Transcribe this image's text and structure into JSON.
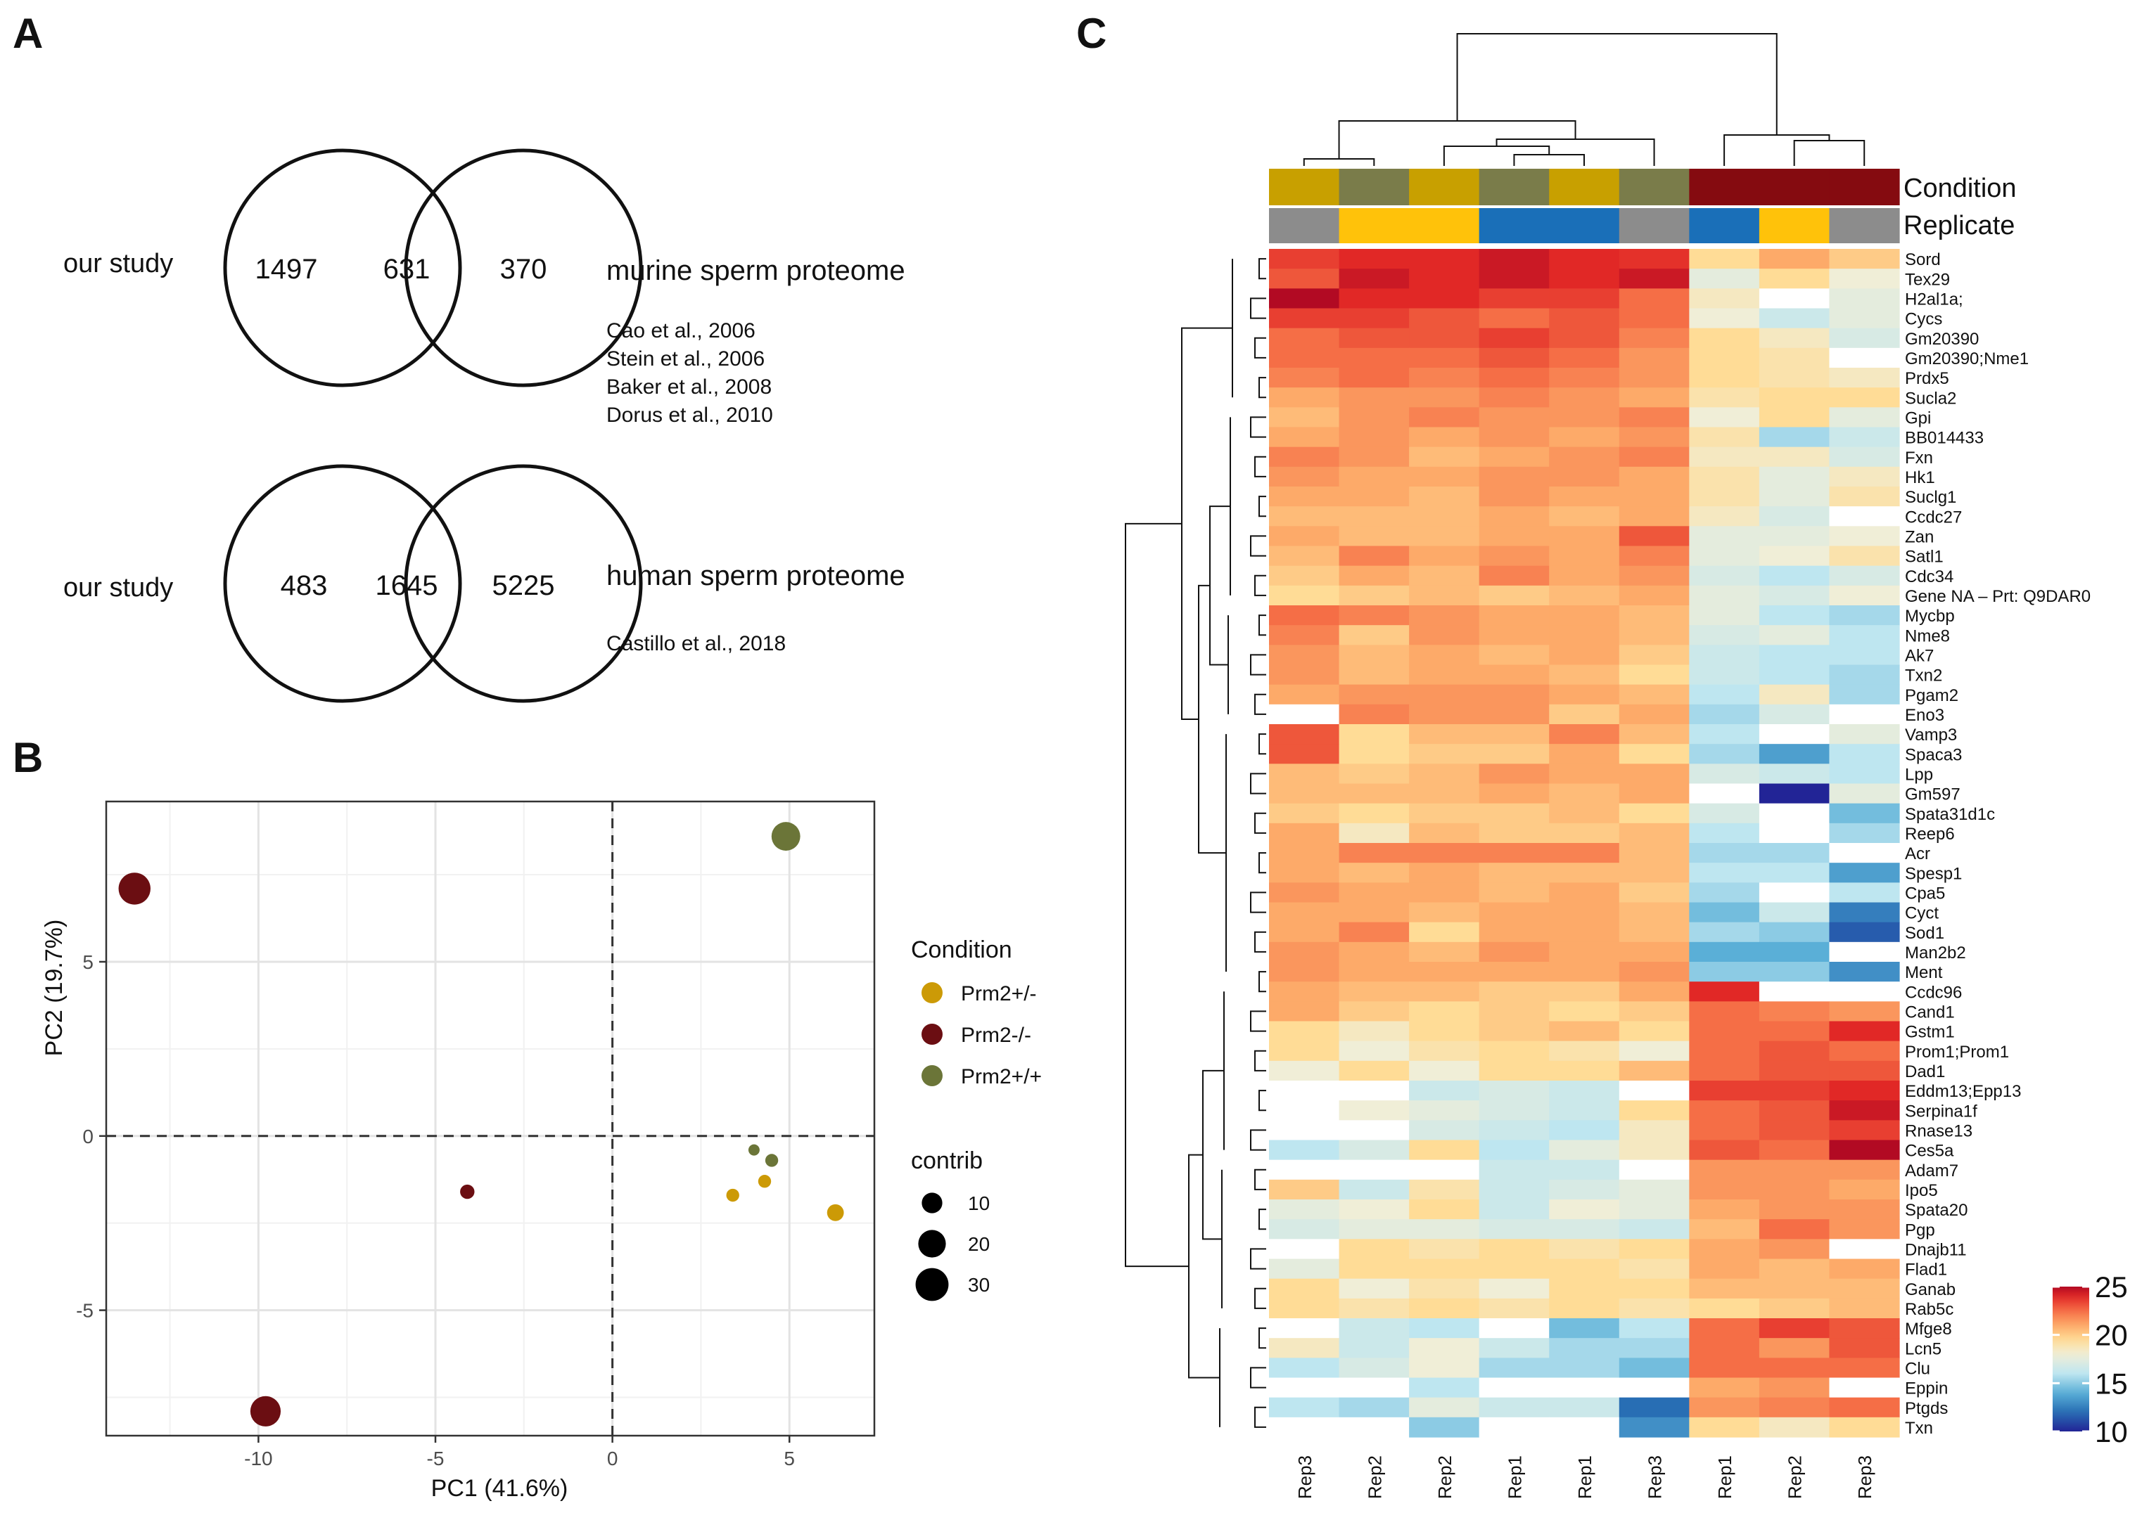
{
  "panel_labels": {
    "a": "A",
    "b": "B",
    "c": "C"
  },
  "panel_a": {
    "venn1": {
      "left_label": "our study",
      "left_only": "1497",
      "overlap": "631",
      "right_only": "370",
      "right_label": "murine sperm proteome",
      "refs": [
        "Cao et al., 2006",
        "Stein et al., 2006",
        "Baker et al., 2008",
        "Dorus et al., 2010"
      ]
    },
    "venn2": {
      "left_label": "our study",
      "left_only": "483",
      "overlap": "1645",
      "right_only": "5225",
      "right_label": "human sperm proteome",
      "refs": [
        "Castillo et al., 2018"
      ]
    }
  },
  "chart_data": [
    {
      "type": "scatter",
      "panel": "B",
      "xlabel": "PC1 (41.6%)",
      "ylabel": "PC2 (19.7%)",
      "xlim": [
        -14.3,
        7.4
      ],
      "ylim": [
        -8.6,
        9.6
      ],
      "xticks": [
        -10,
        -5,
        0,
        5
      ],
      "yticks": [
        -5,
        0,
        5
      ],
      "xtick_labels": [
        "-10",
        "-5",
        "0",
        "5"
      ],
      "ytick_labels": [
        "-5",
        "0",
        "5"
      ],
      "reference_lines": {
        "x": 0,
        "y": 0
      },
      "legend": {
        "condition_title": "Condition",
        "conditions": [
          {
            "name": "Prm2+/-",
            "color": "#cc9a06"
          },
          {
            "name": "Prm2-/-",
            "color": "#6b0e12"
          },
          {
            "name": "Prm2+/+",
            "color": "#6b7538"
          }
        ],
        "size_title": "contrib",
        "sizes": [
          {
            "label": "10",
            "value": 10
          },
          {
            "label": "20",
            "value": 20
          },
          {
            "label": "30",
            "value": 30
          }
        ]
      },
      "points": [
        {
          "x": -13.5,
          "y": 7.1,
          "condition": "Prm2-/-",
          "contrib": 28
        },
        {
          "x": -9.8,
          "y": -7.9,
          "condition": "Prm2-/-",
          "contrib": 25
        },
        {
          "x": -4.1,
          "y": -1.6,
          "condition": "Prm2-/-",
          "contrib": 4
        },
        {
          "x": 4.9,
          "y": 8.6,
          "condition": "Prm2+/+",
          "contrib": 22
        },
        {
          "x": 4.0,
          "y": -0.4,
          "condition": "Prm2+/+",
          "contrib": 2
        },
        {
          "x": 4.5,
          "y": -0.7,
          "condition": "Prm2+/+",
          "contrib": 3
        },
        {
          "x": 4.3,
          "y": -1.3,
          "condition": "Prm2+/-",
          "contrib": 3
        },
        {
          "x": 3.4,
          "y": -1.7,
          "condition": "Prm2+/-",
          "contrib": 3
        },
        {
          "x": 6.3,
          "y": -2.2,
          "condition": "Prm2+/-",
          "contrib": 6
        }
      ]
    },
    {
      "type": "heatmap",
      "panel": "C",
      "annotation_titles": {
        "condition": "Condition",
        "replicate": "Replicate"
      },
      "columns": [
        "Rep3",
        "Rep2",
        "Rep2",
        "Rep1",
        "Rep1",
        "Rep3",
        "Rep1",
        "Rep2",
        "Rep3"
      ],
      "column_condition": [
        "Prm2+/-",
        "Prm2+/+",
        "Prm2+/-",
        "Prm2+/+",
        "Prm2+/-",
        "Prm2+/+",
        "Prm2-/-",
        "Prm2-/-",
        "Prm2-/-"
      ],
      "condition_colors": {
        "Prm2+/-": "#c8a000",
        "Prm2+/+": "#7a7c4a",
        "Prm2-/-": "#850b10"
      },
      "replicate_colors": {
        "Rep1": "#1a6fb8",
        "Rep2": "#ffc20a",
        "Rep3": "#8c8c8c"
      },
      "scale": {
        "min": 10,
        "max": 25,
        "ticks": [
          25,
          20,
          15,
          10
        ],
        "tick_labels": [
          "25",
          "20",
          "15",
          "10"
        ]
      },
      "rows": [
        "Sord",
        "Tex29",
        "H2al1a;",
        "Cycs",
        "Gm20390",
        "Gm20390;Nme1",
        "Prdx5",
        "Sucla2",
        "Gpi",
        "BB014433",
        "Fxn",
        "Hk1",
        "Suclg1",
        "Ccdc27",
        "Zan",
        "Satl1",
        "Cdc34",
        "Gene NA – Prt: Q9DAR0",
        "Mycbp",
        "Nme8",
        "Ak7",
        "Txn2",
        "Pgam2",
        "Eno3",
        "Vamp3",
        "Spaca3",
        "Lpp",
        "Gm597",
        "Spata31d1c",
        "Reep6",
        "Acr",
        "Spesp1",
        "Cpa5",
        "Cyct",
        "Sod1",
        "Man2b2",
        "Ment",
        "Ccdc96",
        "Cand1",
        "Gstm1",
        "Prom1;Prom1",
        "Dad1",
        "Eddm13;Epp13",
        "Serpina1f",
        "Rnase13",
        "Ces5a",
        "Adam7",
        "Ipo5",
        "Spata20",
        "Pgp",
        "Dnajb11",
        "Flad1",
        "Ganab",
        "Rab5c",
        "Mfge8",
        "Lcn5",
        "Clu",
        "Eppin",
        "Ptgds",
        "Txn"
      ],
      "values": [
        [
          23.5,
          24.0,
          24.0,
          24.5,
          24.0,
          23.8,
          19.5,
          21.0,
          20.0
        ],
        [
          23.0,
          24.5,
          24.0,
          24.5,
          24.0,
          24.5,
          17.5,
          19.5,
          18.0
        ],
        [
          25.0,
          24.0,
          24.0,
          23.5,
          23.5,
          22.5,
          18.5,
          null,
          17.5
        ],
        [
          23.5,
          23.5,
          23.0,
          22.5,
          23.0,
          22.5,
          18.0,
          16.5,
          17.5
        ],
        [
          22.5,
          23.0,
          23.0,
          23.5,
          23.0,
          22.0,
          19.5,
          18.5,
          17.0
        ],
        [
          22.5,
          22.5,
          22.5,
          23.0,
          22.5,
          21.5,
          19.5,
          19.0,
          null
        ],
        [
          22.0,
          22.5,
          22.0,
          22.5,
          22.0,
          21.5,
          19.5,
          19.0,
          18.5
        ],
        [
          21.0,
          21.5,
          21.5,
          22.0,
          21.5,
          21.0,
          19.0,
          19.5,
          19.5
        ],
        [
          20.5,
          21.5,
          22.0,
          21.5,
          21.5,
          22.0,
          18.0,
          19.5,
          17.5
        ],
        [
          21.0,
          21.5,
          21.0,
          21.5,
          21.0,
          21.5,
          19.0,
          15.5,
          16.5
        ],
        [
          22.0,
          21.5,
          20.5,
          21.0,
          21.5,
          22.0,
          18.5,
          18.5,
          17.0
        ],
        [
          21.5,
          21.0,
          21.0,
          21.5,
          21.5,
          21.0,
          19.0,
          17.5,
          18.5
        ],
        [
          21.0,
          21.0,
          20.5,
          21.5,
          21.0,
          21.0,
          19.0,
          17.5,
          19.0
        ],
        [
          20.5,
          20.5,
          20.5,
          21.0,
          20.5,
          21.0,
          18.5,
          17.0,
          null
        ],
        [
          21.0,
          20.5,
          20.5,
          21.0,
          21.0,
          23.0,
          17.5,
          17.5,
          18.0
        ],
        [
          20.5,
          22.0,
          21.0,
          21.5,
          21.0,
          22.0,
          17.5,
          18.0,
          19.0
        ],
        [
          20.0,
          21.0,
          20.5,
          22.0,
          21.0,
          21.5,
          17.0,
          16.0,
          17.0
        ],
        [
          19.5,
          20.0,
          20.5,
          20.0,
          20.5,
          21.0,
          17.5,
          17.0,
          18.0
        ],
        [
          22.5,
          22.0,
          21.5,
          21.0,
          21.0,
          20.5,
          17.5,
          16.0,
          15.5
        ],
        [
          22.0,
          20.0,
          21.5,
          21.0,
          21.0,
          20.5,
          17.0,
          17.5,
          16.0
        ],
        [
          21.5,
          20.5,
          21.0,
          20.5,
          21.0,
          20.0,
          16.5,
          16.0,
          16.0
        ],
        [
          21.5,
          20.5,
          21.0,
          21.0,
          20.5,
          19.5,
          16.5,
          16.0,
          15.5
        ],
        [
          21.0,
          21.5,
          21.5,
          21.5,
          21.0,
          20.5,
          16.0,
          18.5,
          15.5
        ],
        [
          null,
          22.0,
          21.5,
          21.5,
          20.0,
          21.0,
          15.5,
          17.0,
          null
        ],
        [
          23.0,
          19.5,
          20.5,
          20.5,
          22.0,
          20.5,
          16.0,
          null,
          17.5
        ],
        [
          23.0,
          19.5,
          20.0,
          20.0,
          21.0,
          19.5,
          15.5,
          13.5,
          16.0
        ],
        [
          20.5,
          20.0,
          20.5,
          21.5,
          21.0,
          21.0,
          17.0,
          16.5,
          16.0
        ],
        [
          20.5,
          20.5,
          20.5,
          21.0,
          20.5,
          21.0,
          null,
          10.0,
          17.5
        ],
        [
          20.0,
          19.5,
          20.0,
          20.0,
          20.5,
          19.5,
          17.0,
          null,
          14.5
        ],
        [
          21.0,
          18.5,
          20.5,
          20.0,
          20.0,
          20.5,
          16.0,
          null,
          15.5
        ],
        [
          21.0,
          22.0,
          22.0,
          22.0,
          22.0,
          20.5,
          15.5,
          15.5,
          null
        ],
        [
          21.0,
          20.5,
          21.0,
          20.5,
          20.5,
          20.5,
          16.0,
          16.0,
          13.5
        ],
        [
          21.5,
          21.0,
          21.0,
          20.5,
          21.0,
          20.0,
          15.5,
          null,
          16.0
        ],
        [
          21.0,
          21.0,
          20.5,
          21.0,
          21.0,
          20.5,
          14.5,
          16.5,
          12.5
        ],
        [
          21.0,
          22.0,
          19.5,
          21.0,
          21.0,
          20.5,
          15.5,
          15.0,
          11.5
        ],
        [
          21.5,
          21.0,
          20.5,
          21.5,
          21.0,
          21.0,
          14.0,
          14.0,
          null
        ],
        [
          21.5,
          21.0,
          21.0,
          21.0,
          21.0,
          21.5,
          15.0,
          15.0,
          13.0
        ],
        [
          21.0,
          20.5,
          20.5,
          20.0,
          20.0,
          21.0,
          24.0,
          null,
          null
        ],
        [
          21.0,
          20.0,
          19.5,
          20.0,
          19.5,
          20.0,
          22.5,
          22.0,
          21.5
        ],
        [
          19.5,
          18.5,
          19.5,
          20.0,
          20.5,
          19.5,
          22.5,
          22.5,
          24.0
        ],
        [
          19.5,
          18.0,
          19.0,
          19.5,
          19.0,
          18.0,
          22.5,
          23.0,
          22.5
        ],
        [
          18.0,
          19.5,
          18.0,
          19.5,
          19.5,
          20.5,
          22.5,
          23.0,
          23.0
        ],
        [
          null,
          null,
          16.5,
          17.0,
          16.5,
          null,
          23.5,
          23.5,
          24.0
        ],
        [
          null,
          18.0,
          17.5,
          17.0,
          16.5,
          19.5,
          22.5,
          23.0,
          24.5
        ],
        [
          null,
          null,
          17.0,
          16.5,
          16.0,
          18.5,
          22.5,
          23.0,
          23.5
        ],
        [
          16.0,
          17.0,
          19.5,
          16.0,
          17.5,
          18.5,
          23.0,
          22.5,
          25.0
        ],
        [
          null,
          null,
          null,
          16.5,
          16.5,
          null,
          21.5,
          21.5,
          21.5
        ],
        [
          20.0,
          16.5,
          19.0,
          16.5,
          17.0,
          17.5,
          21.5,
          21.5,
          21.0
        ],
        [
          17.5,
          18.0,
          19.5,
          16.5,
          18.0,
          17.5,
          21.0,
          21.5,
          21.5
        ],
        [
          17.0,
          17.5,
          17.5,
          17.0,
          17.0,
          16.5,
          20.5,
          22.5,
          21.5
        ],
        [
          null,
          19.5,
          19.0,
          19.5,
          19.0,
          19.5,
          21.0,
          21.5,
          null
        ],
        [
          17.5,
          19.5,
          19.5,
          19.5,
          19.5,
          19.0,
          21.0,
          20.5,
          21.0
        ],
        [
          19.5,
          18.0,
          19.0,
          18.0,
          19.5,
          19.5,
          20.5,
          20.5,
          20.5
        ],
        [
          19.5,
          19.0,
          19.5,
          19.0,
          19.5,
          19.0,
          19.5,
          20.0,
          20.5
        ],
        [
          null,
          16.5,
          16.0,
          null,
          14.5,
          16.0,
          22.5,
          23.5,
          23.0
        ],
        [
          18.5,
          16.5,
          18.0,
          16.5,
          15.5,
          15.5,
          22.5,
          21.5,
          23.0
        ],
        [
          16.0,
          17.0,
          18.0,
          15.5,
          15.5,
          14.5,
          22.5,
          22.5,
          22.5
        ],
        [
          null,
          null,
          16.0,
          null,
          null,
          null,
          21.0,
          21.5,
          null
        ],
        [
          16.0,
          15.5,
          17.5,
          16.5,
          16.5,
          12.0,
          21.5,
          22.0,
          22.5
        ],
        [
          null,
          null,
          15.0,
          null,
          null,
          13.0,
          19.5,
          18.5,
          19.5
        ]
      ]
    }
  ]
}
